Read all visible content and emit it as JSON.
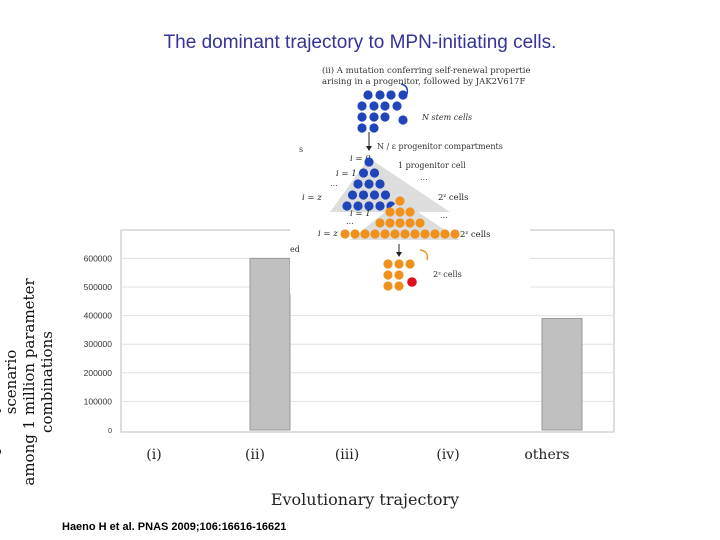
{
  "slide": {
    "title": "The dominant trajectory to MPN-initiating cells.",
    "citation": "Haeno H et al. PNAS 2009;106:16616-16621"
  },
  "chart_data": {
    "type": "bar",
    "categories": [
      "(i)",
      "(ii)",
      "(iii)",
      "(iv)",
      "others"
    ],
    "values": [
      0,
      600000,
      0,
      0,
      390000
    ],
    "ylabel_line1": "Frequency of the dominant scenario",
    "ylabel_line2": "among 1 million parameter combinations",
    "xlabel": "Evolutionary trajectory",
    "yticks": [
      0,
      100000,
      200000,
      300000,
      400000,
      500000,
      600000
    ],
    "ytick_labels": [
      "0",
      "100000",
      "200000",
      "300000",
      "400000",
      "500000",
      "600000"
    ],
    "ylim": [
      0,
      620000
    ],
    "bar_color": "#c0c0c0",
    "bar_edge": "#999999"
  },
  "inset": {
    "caption_line1": "(ii) A mutation conferring self-renewal properties",
    "caption_line2": "arising in a progenitor, followed by JAK2V617F",
    "stem_label": "N stem cells",
    "compartments_label": "N / ε  progenitor compartments",
    "i0_label": "i = 0",
    "one_cell_label": "1 progenitor cell",
    "i1_label": "i = 1",
    "iz_label": "i = z",
    "cells_2z": "2ᶻ cells",
    "i1b_label": "i = 1",
    "izb_label": "i = z",
    "cells_2z_b": "2ᶻ cells",
    "cells_2z_c": "2ᶻ cells",
    "dots": "...",
    "partial_s": "s",
    "partial_ed": "ed",
    "blue": "#1f45b8",
    "orange": "#f0911e",
    "red": "#e0101a"
  }
}
